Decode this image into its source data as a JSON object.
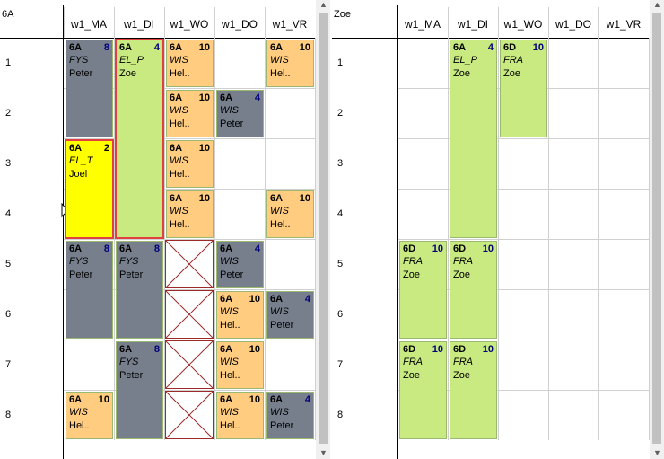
{
  "left": {
    "title": "6A",
    "days": [
      "w1_MA",
      "w1_DI",
      "w1_WO",
      "w1_DO",
      "w1_VR"
    ],
    "periods": [
      "1",
      "2",
      "3",
      "4",
      "5",
      "6",
      "7",
      "8"
    ]
  },
  "right": {
    "title": "Zoe",
    "days": [
      "w1_MA",
      "w1_DI",
      "w1_WO",
      "w1_DO",
      "w1_VR"
    ],
    "periods": [
      "1",
      "2",
      "3",
      "4",
      "5",
      "6",
      "7",
      "8"
    ]
  },
  "left_cards": [
    {
      "cls": "6A",
      "cnt": "8",
      "subj": "FYS",
      "tch": "Peter",
      "color": "gray"
    },
    {
      "cls": "6A",
      "cnt": "4",
      "subj": "EL_P",
      "tch": "Zoe",
      "color": "green"
    },
    {
      "cls": "6A",
      "cnt": "10",
      "subj": "WIS",
      "tch": "Hel..",
      "color": "orange"
    },
    {
      "cls": "6A",
      "cnt": "10",
      "subj": "WIS",
      "tch": "Hel..",
      "color": "orange"
    },
    {
      "cls": "6A",
      "cnt": "10",
      "subj": "WIS",
      "tch": "Hel..",
      "color": "orange"
    },
    {
      "cls": "6A",
      "cnt": "4",
      "subj": "WIS",
      "tch": "Peter",
      "color": "gray"
    },
    {
      "cls": "6A",
      "cnt": "2",
      "subj": "EL_T",
      "tch": "Joel",
      "color": "yellow"
    },
    {
      "cls": "6A",
      "cnt": "10",
      "subj": "WIS",
      "tch": "Hel..",
      "color": "orange"
    },
    {
      "cls": "6A",
      "cnt": "10",
      "subj": "WIS",
      "tch": "Hel..",
      "color": "orange"
    },
    {
      "cls": "6A",
      "cnt": "10",
      "subj": "WIS",
      "tch": "Hel..",
      "color": "orange"
    },
    {
      "cls": "6A",
      "cnt": "8",
      "subj": "FYS",
      "tch": "Peter",
      "color": "gray"
    },
    {
      "cls": "6A",
      "cnt": "8",
      "subj": "FYS",
      "tch": "Peter",
      "color": "gray"
    },
    {
      "cls": "6A",
      "cnt": "4",
      "subj": "WIS",
      "tch": "Peter",
      "color": "gray"
    },
    {
      "cls": "6A",
      "cnt": "10",
      "subj": "WIS",
      "tch": "Hel..",
      "color": "orange"
    },
    {
      "cls": "6A",
      "cnt": "4",
      "subj": "WIS",
      "tch": "Peter",
      "color": "gray"
    },
    {
      "cls": "6A",
      "cnt": "8",
      "subj": "FYS",
      "tch": "Peter",
      "color": "gray"
    },
    {
      "cls": "6A",
      "cnt": "10",
      "subj": "WIS",
      "tch": "Hel..",
      "color": "orange"
    },
    {
      "cls": "6A",
      "cnt": "10",
      "subj": "WIS",
      "tch": "Hel..",
      "color": "orange"
    },
    {
      "cls": "6A",
      "cnt": "10",
      "subj": "WIS",
      "tch": "Hel..",
      "color": "orange"
    },
    {
      "cls": "6A",
      "cnt": "4",
      "subj": "WIS",
      "tch": "Peter",
      "color": "gray"
    }
  ],
  "right_cards": [
    {
      "cls": "6A",
      "cnt": "4",
      "subj": "EL_P",
      "tch": "Zoe",
      "color": "green"
    },
    {
      "cls": "6D",
      "cnt": "10",
      "subj": "FRA",
      "tch": "Zoe",
      "color": "green"
    },
    {
      "cls": "6D",
      "cnt": "10",
      "subj": "FRA",
      "tch": "Zoe",
      "color": "green"
    },
    {
      "cls": "6D",
      "cnt": "10",
      "subj": "FRA",
      "tch": "Zoe",
      "color": "green"
    },
    {
      "cls": "6D",
      "cnt": "10",
      "subj": "FRA",
      "tch": "Zoe",
      "color": "green"
    },
    {
      "cls": "6D",
      "cnt": "10",
      "subj": "FRA",
      "tch": "Zoe",
      "color": "green"
    }
  ],
  "colors": {
    "orange": "#ffcc80",
    "gray": "#777f8c",
    "green": "#c8ea80",
    "yellow": "#ffff00",
    "selection": "#e04040"
  }
}
